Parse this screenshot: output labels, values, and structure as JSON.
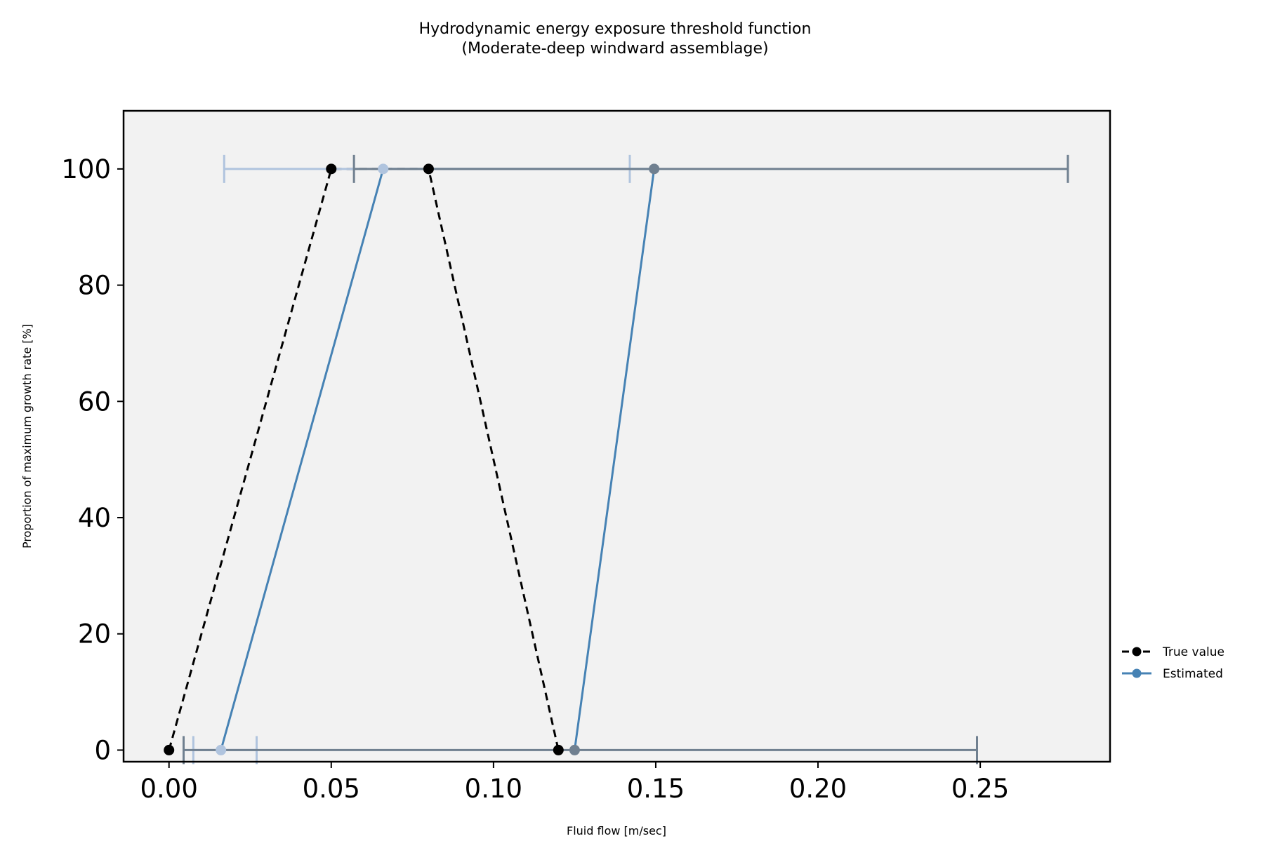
{
  "chart_data": {
    "type": "line",
    "title": "Hydrodynamic energy exposure threshold function",
    "subtitle": "(Moderate-deep windward assemblage)",
    "xlabel": "Fluid flow [m/sec]",
    "ylabel": "Proportion of maximum growth rate [%]",
    "xlim": [
      -0.014,
      0.29
    ],
    "ylim": [
      -2,
      110
    ],
    "x_ticks": [
      0.0,
      0.05,
      0.1,
      0.15,
      0.2,
      0.25
    ],
    "x_tick_labels": [
      "0.00",
      "0.05",
      "0.10",
      "0.15",
      "0.20",
      "0.25"
    ],
    "y_ticks": [
      0,
      20,
      40,
      60,
      80,
      100
    ],
    "y_tick_labels": [
      "0",
      "20",
      "40",
      "60",
      "80",
      "100"
    ],
    "grid": false,
    "legend_position": "right, lower",
    "series": [
      {
        "name": "True value",
        "color": "#000000",
        "line_style": "dashed",
        "x": [
          0.0,
          0.05,
          0.08,
          0.12
        ],
        "y": [
          0,
          100,
          100,
          0
        ]
      },
      {
        "name": "Estimated",
        "color": "#4682b4",
        "line_style": "solid",
        "x": [
          0.016,
          0.066,
          0.1495,
          0.125
        ],
        "y": [
          0,
          100,
          100,
          0
        ]
      }
    ],
    "error_bars": [
      {
        "y": 100,
        "center": 0.066,
        "low": 0.017,
        "high": 0.142,
        "color": "#b0c4de"
      },
      {
        "y": 100,
        "center": 0.1495,
        "low": 0.057,
        "high": 0.277,
        "color": "#708090"
      },
      {
        "y": 0,
        "center": 0.016,
        "low": 0.0075,
        "high": 0.027,
        "color": "#b0c4de"
      },
      {
        "y": 0,
        "center": 0.125,
        "low": 0.0045,
        "high": 0.249,
        "color": "#708090"
      }
    ],
    "estimated_point_colors": [
      "#b0c4de",
      "#b0c4de",
      "#708090",
      "#708090"
    ],
    "plot_background": "#f2f2f2"
  }
}
